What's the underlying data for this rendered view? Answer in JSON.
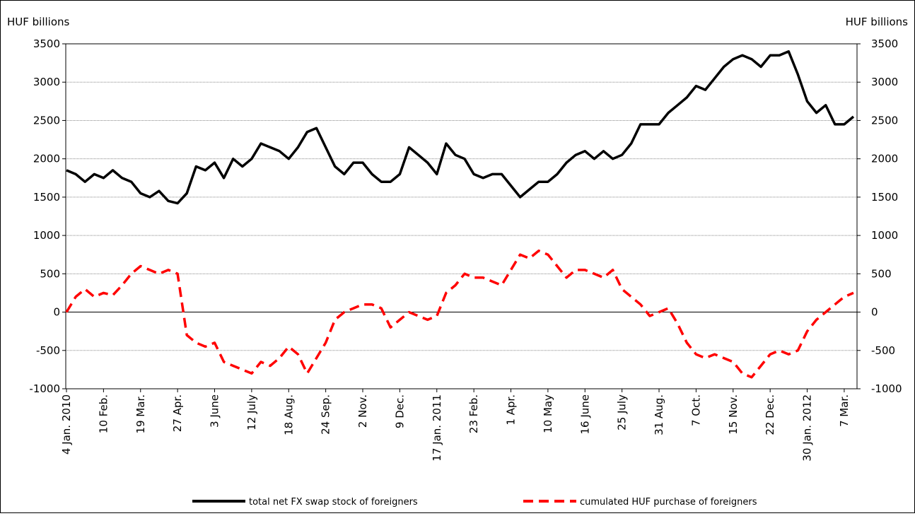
{
  "chart_data": {
    "type": "line",
    "y_label": "HUF billions",
    "y2_label": "HUF billions",
    "categories": [
      "4 Jan. 2010",
      null,
      null,
      null,
      "10 Feb.",
      null,
      null,
      null,
      "19 Mar.",
      null,
      null,
      null,
      "27 Apr.",
      null,
      null,
      null,
      "3 June",
      null,
      null,
      null,
      "12 July",
      null,
      null,
      null,
      "18 Aug.",
      null,
      null,
      null,
      "24 Sep.",
      null,
      null,
      null,
      "2 Nov.",
      null,
      null,
      null,
      "9 Dec.",
      null,
      null,
      null,
      "17 Jan. 2011",
      null,
      null,
      null,
      "23 Feb.",
      null,
      null,
      null,
      "1 Apr.",
      null,
      null,
      null,
      "10 May",
      null,
      null,
      null,
      "16 June",
      null,
      null,
      null,
      "25 July",
      null,
      null,
      null,
      "31 Aug.",
      null,
      null,
      null,
      "7 Oct.",
      null,
      null,
      null,
      "15 Nov.",
      null,
      null,
      null,
      "22 Dec.",
      null,
      null,
      null,
      "30 Jan. 2012",
      null,
      null,
      null,
      "7 Mar.",
      null
    ],
    "series": [
      {
        "name": "total net FX swap stock of foreigners",
        "color": "#000000",
        "dash": false,
        "axis": "y",
        "values": [
          1850,
          1800,
          1700,
          1800,
          1750,
          1850,
          1750,
          1700,
          1550,
          1500,
          1580,
          1450,
          1420,
          1550,
          1900,
          1850,
          1950,
          1750,
          2000,
          1900,
          2000,
          2200,
          2150,
          2100,
          2000,
          2150,
          2350,
          2400,
          2150,
          1900,
          1800,
          1950,
          1950,
          1800,
          1700,
          1700,
          1800,
          2150,
          2050,
          1950,
          1800,
          2200,
          2050,
          2000,
          1800,
          1750,
          1800,
          1800,
          1650,
          1500,
          1600,
          1700,
          1700,
          1800,
          1950,
          2050,
          2100,
          2000,
          2100,
          2000,
          2050,
          2200,
          2450,
          2450,
          2450,
          2600,
          2700,
          2800,
          2950,
          2900,
          3050,
          3200,
          3300,
          3350,
          3300,
          3200,
          3350,
          3350,
          3400,
          3100,
          2750,
          2600,
          2700,
          2450,
          2450,
          2550
        ]
      },
      {
        "name": "cumulated HUF purchase of foreigners",
        "color": "#ff0000",
        "dash": true,
        "axis": "y2",
        "values": [
          0,
          200,
          300,
          200,
          250,
          220,
          350,
          500,
          600,
          550,
          500,
          550,
          500,
          -300,
          -400,
          -450,
          -400,
          -650,
          -700,
          -750,
          -800,
          -650,
          -700,
          -600,
          -450,
          -550,
          -800,
          -600,
          -400,
          -100,
          0,
          50,
          100,
          100,
          50,
          -200,
          -100,
          0,
          -50,
          -100,
          -50,
          250,
          350,
          500,
          450,
          450,
          400,
          350,
          550,
          750,
          700,
          800,
          750,
          600,
          450,
          550,
          550,
          500,
          450,
          550,
          300,
          200,
          100,
          -50,
          0,
          50,
          -150,
          -400,
          -550,
          -600,
          -550,
          -600,
          -650,
          -800,
          -850,
          -700,
          -550,
          -500,
          -550,
          -500,
          -250,
          -100,
          0,
          100,
          200,
          250
        ]
      }
    ],
    "ylim": [
      -1000,
      3500
    ],
    "yticks": [
      -1000,
      -500,
      0,
      500,
      1000,
      1500,
      2000,
      2500,
      3000,
      3500
    ],
    "y2lim": [
      -1000,
      3500
    ],
    "y2ticks": [
      -1000,
      -500,
      0,
      500,
      1000,
      1500,
      2000,
      2500,
      3000,
      3500
    ],
    "grid": true,
    "legend": "bottom"
  }
}
